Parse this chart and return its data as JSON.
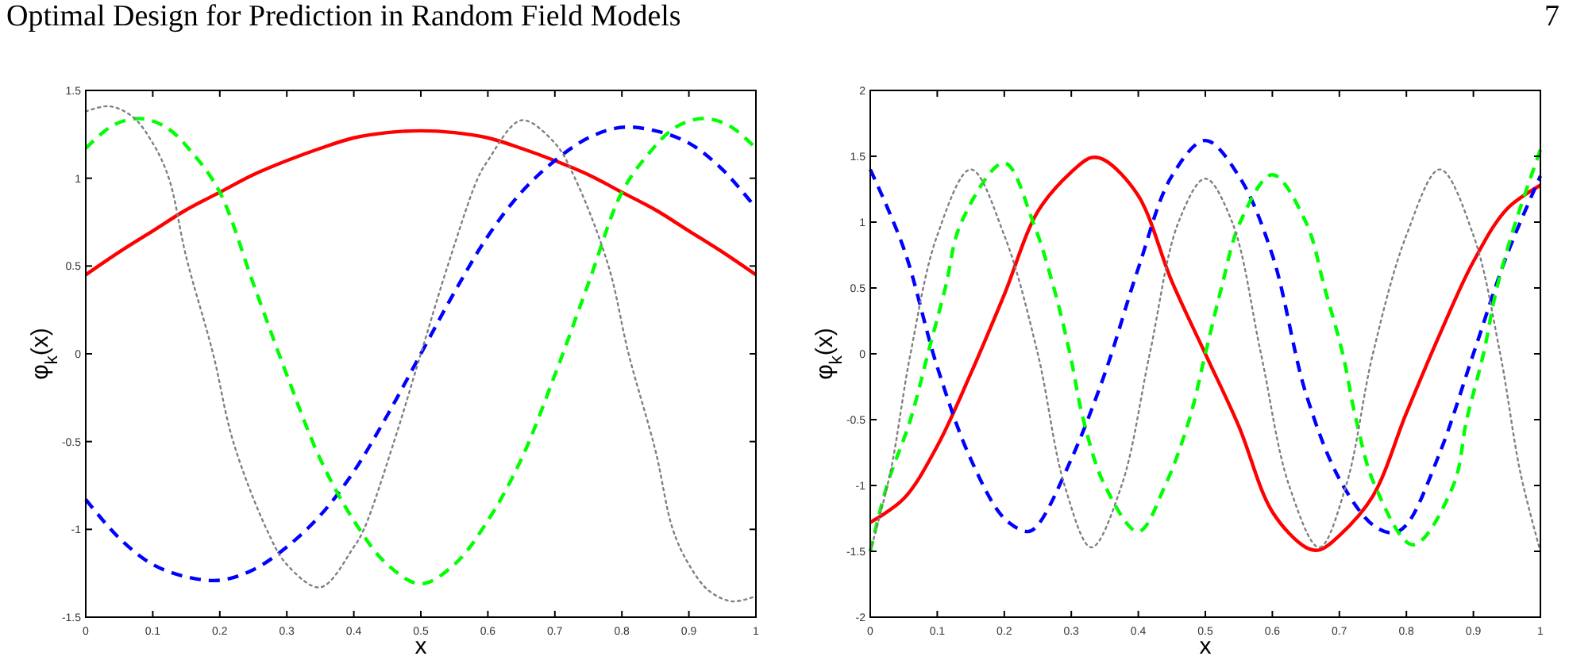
{
  "chart_data": [
    {
      "type": "line",
      "annotations": [
        "Optimal Design for Prediction in Random Field Models",
        "7"
      ],
      "xlabel": "x",
      "ylabel": "φ$_{k}$(x)",
      "xlim": [
        0,
        1
      ],
      "ylim": [
        -1.5,
        1.5
      ],
      "xticks": [
        0,
        0.1,
        0.2,
        0.3,
        0.4,
        0.5,
        0.6,
        0.7,
        0.8,
        0.9,
        1
      ],
      "yticks": [
        -1.5,
        -1,
        -0.5,
        0,
        0.5,
        1,
        1.5
      ],
      "grid": false,
      "series": [
        {
          "color": "#ff0000",
          "line_style": "solid",
          "x": [
            0,
            0.05,
            0.1,
            0.15,
            0.2,
            0.25,
            0.3,
            0.35,
            0.4,
            0.45,
            0.5,
            0.55,
            0.6,
            0.65,
            0.7,
            0.75,
            0.8,
            0.85,
            0.9,
            0.95,
            1
          ],
          "values": [
            0.45,
            0.58,
            0.7,
            0.82,
            0.92,
            1.02,
            1.1,
            1.17,
            1.23,
            1.26,
            1.27,
            1.26,
            1.23,
            1.17,
            1.1,
            1.02,
            0.92,
            0.82,
            0.7,
            0.58,
            0.45
          ]
        },
        {
          "color": "#0000ff",
          "line_style": "dashed",
          "x": [
            0,
            0.05,
            0.1,
            0.15,
            0.2,
            0.25,
            0.3,
            0.35,
            0.4,
            0.45,
            0.5,
            0.55,
            0.6,
            0.65,
            0.7,
            0.75,
            0.8,
            0.85,
            0.9,
            0.95,
            1
          ],
          "values": [
            -0.83,
            -1.05,
            -1.2,
            -1.27,
            -1.29,
            -1.23,
            -1.1,
            -0.92,
            -0.67,
            -0.35,
            0,
            0.35,
            0.67,
            0.92,
            1.1,
            1.23,
            1.29,
            1.27,
            1.2,
            1.05,
            0.83
          ]
        },
        {
          "color": "#00ff00",
          "line_style": "dashed",
          "x": [
            0,
            0.04,
            0.08,
            0.12,
            0.16,
            0.2,
            0.25,
            0.3,
            0.35,
            0.4,
            0.45,
            0.5,
            0.55,
            0.6,
            0.65,
            0.7,
            0.75,
            0.8,
            0.84,
            0.88,
            0.92,
            0.96,
            1
          ],
          "values": [
            1.17,
            1.3,
            1.34,
            1.29,
            1.14,
            0.92,
            0.4,
            -0.12,
            -0.6,
            -0.95,
            -1.2,
            -1.31,
            -1.2,
            -0.95,
            -0.6,
            -0.12,
            0.4,
            0.92,
            1.14,
            1.29,
            1.34,
            1.3,
            1.17
          ]
        },
        {
          "color": "#808080",
          "line_style": "dotted",
          "x": [
            0,
            0.035,
            0.07,
            0.1,
            0.124,
            0.15,
            0.19,
            0.22,
            0.27,
            0.3,
            0.35,
            0.4,
            0.415,
            0.46,
            0.5,
            0.54,
            0.585,
            0.6,
            0.65,
            0.7,
            0.73,
            0.78,
            0.81,
            0.85,
            0.876,
            0.9,
            0.93,
            0.965,
            1
          ],
          "values": [
            1.38,
            1.41,
            1.35,
            1.2,
            1,
            0.55,
            0,
            -0.5,
            -1,
            -1.2,
            -1.33,
            -1.1,
            -1,
            -0.5,
            0,
            0.5,
            1,
            1.1,
            1.33,
            1.2,
            1,
            0.5,
            0,
            -0.55,
            -1,
            -1.2,
            -1.35,
            -1.41,
            -1.38
          ]
        }
      ]
    },
    {
      "type": "line",
      "xlabel": "x",
      "ylabel": "φ$_{k}$(x)",
      "xlim": [
        0,
        1
      ],
      "ylim": [
        -2,
        2
      ],
      "xticks": [
        0,
        0.1,
        0.2,
        0.3,
        0.4,
        0.5,
        0.6,
        0.7,
        0.8,
        0.9,
        1
      ],
      "yticks": [
        -2,
        -1.5,
        -1,
        -0.5,
        0,
        0.5,
        1,
        1.5,
        2
      ],
      "grid": false,
      "series": [
        {
          "color": "#ff0000",
          "line_style": "solid",
          "x": [
            0,
            0.05,
            0.1,
            0.15,
            0.2,
            0.25,
            0.3,
            0.33,
            0.35,
            0.4,
            0.45,
            0.5,
            0.55,
            0.6,
            0.65,
            0.67,
            0.7,
            0.75,
            0.8,
            0.85,
            0.9,
            0.95,
            1
          ],
          "values": [
            -1.28,
            -1.1,
            -0.7,
            -0.15,
            0.45,
            1.08,
            1.38,
            1.49,
            1.47,
            1.2,
            0.55,
            0,
            -0.55,
            -1.2,
            -1.47,
            -1.49,
            -1.38,
            -1.08,
            -0.45,
            0.15,
            0.7,
            1.1,
            1.28
          ]
        },
        {
          "color": "#0000ff",
          "line_style": "dashed",
          "x": [
            0,
            0.05,
            0.1,
            0.15,
            0.2,
            0.235,
            0.25,
            0.3,
            0.35,
            0.4,
            0.45,
            0.5,
            0.55,
            0.6,
            0.65,
            0.7,
            0.75,
            0.78,
            0.8,
            0.85,
            0.9,
            0.95,
            1
          ],
          "values": [
            1.4,
            0.8,
            -0.1,
            -0.8,
            -1.25,
            -1.35,
            -1.3,
            -0.8,
            -0.15,
            0.65,
            1.35,
            1.62,
            1.35,
            0.75,
            -0.3,
            -0.95,
            -1.3,
            -1.36,
            -1.3,
            -0.75,
            0,
            0.75,
            1.35
          ]
        },
        {
          "color": "#00ff00",
          "line_style": "dashed",
          "x": [
            0,
            0.025,
            0.06,
            0.086,
            0.112,
            0.136,
            0.2,
            0.243,
            0.274,
            0.298,
            0.318,
            0.35,
            0.4,
            0.44,
            0.476,
            0.5,
            0.524,
            0.552,
            0.6,
            0.65,
            0.678,
            0.705,
            0.725,
            0.753,
            0.81,
            0.87,
            0.89,
            0.915,
            0.935,
            0.963,
            1
          ],
          "values": [
            -1.5,
            -1,
            -0.5,
            0,
            0.5,
            1,
            1.45,
            1,
            0.5,
            0,
            -0.5,
            -1,
            -1.35,
            -1,
            -0.5,
            0,
            0.5,
            1,
            1.36,
            1,
            0.5,
            0,
            -0.5,
            -1,
            -1.45,
            -1,
            -0.5,
            0,
            0.5,
            1,
            1.55
          ]
        },
        {
          "color": "#808080",
          "line_style": "dotted",
          "x": [
            0,
            0.03,
            0.06,
            0.1,
            0.15,
            0.2,
            0.25,
            0.29,
            0.33,
            0.375,
            0.417,
            0.46,
            0.5,
            0.54,
            0.583,
            0.625,
            0.67,
            0.71,
            0.75,
            0.8,
            0.85,
            0.9,
            0.94,
            0.97,
            1
          ],
          "values": [
            -1.5,
            -0.9,
            0,
            0.9,
            1.4,
            0.9,
            0,
            -1,
            -1.47,
            -1,
            0,
            1,
            1.33,
            1,
            0,
            -1,
            -1.47,
            -1,
            0,
            0.9,
            1.4,
            0.9,
            0,
            -0.9,
            -1.5
          ]
        }
      ]
    }
  ]
}
